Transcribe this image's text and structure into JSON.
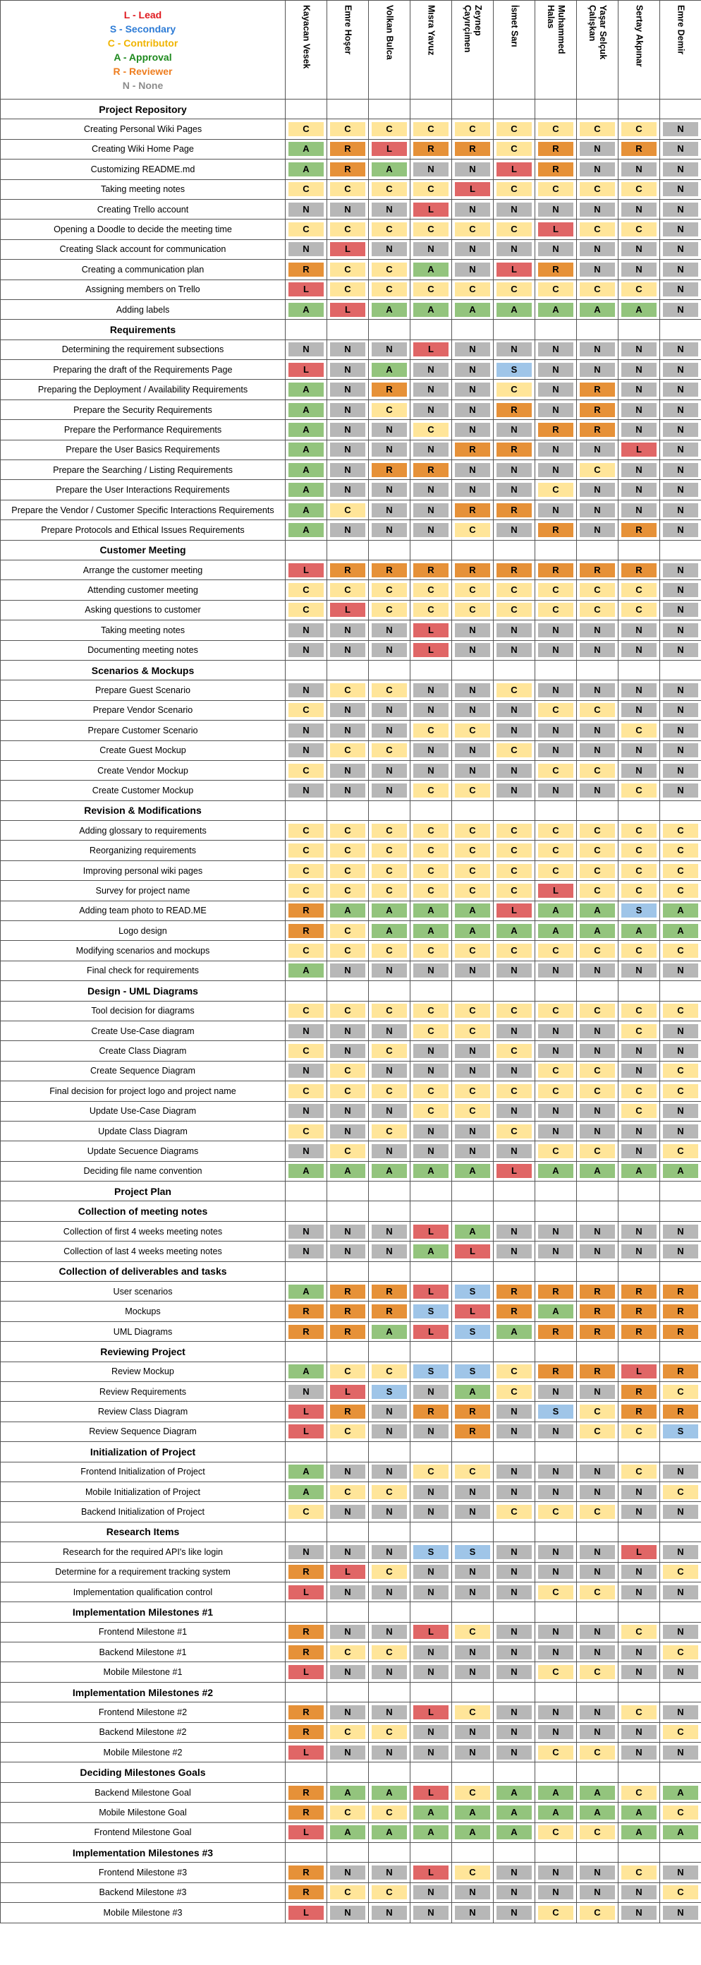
{
  "legend": [
    {
      "text": "L - Lead",
      "color": "#e0191f"
    },
    {
      "text": "S - Secondary",
      "color": "#2e7cd6"
    },
    {
      "text": "C - Contributor",
      "color": "#f0b400"
    },
    {
      "text": "A - Approval",
      "color": "#1e8a1e"
    },
    {
      "text": "R - Reviewer",
      "color": "#ee7d1f"
    },
    {
      "text": "N - None",
      "color": "#8c8c8c"
    }
  ],
  "colors": {
    "L": "#e06666",
    "S": "#9fc5e8",
    "C": "#ffe599",
    "A": "#93c47d",
    "R": "#e69138",
    "N": "#b7b7b7"
  },
  "members": [
    "Kayacan Vesek",
    "Emre Hoşer",
    "Volkan Bulca",
    "Mısra Yavuz",
    "Zeynep\nÇayırçimen",
    "İsmet Sarı",
    "Muhammed\nHalas",
    "Yaşar Selçuk\nÇalışkan",
    "Sertay Akpınar",
    "Emre Demir"
  ],
  "rows": [
    {
      "type": "section",
      "title": "Project Repository"
    },
    {
      "type": "task",
      "name": "Creating Personal Wiki Pages",
      "r": [
        "C",
        "C",
        "C",
        "C",
        "C",
        "C",
        "C",
        "C",
        "C",
        "N"
      ]
    },
    {
      "type": "task",
      "name": "Creating Wiki Home Page",
      "r": [
        "A",
        "R",
        "L",
        "R",
        "R",
        "C",
        "R",
        "N",
        "R",
        "N"
      ]
    },
    {
      "type": "task",
      "name": "Customizing README.md",
      "r": [
        "A",
        "R",
        "A",
        "N",
        "N",
        "L",
        "R",
        "N",
        "N",
        "N"
      ]
    },
    {
      "type": "task",
      "name": "Taking meeting notes",
      "r": [
        "C",
        "C",
        "C",
        "C",
        "L",
        "C",
        "C",
        "C",
        "C",
        "N"
      ]
    },
    {
      "type": "task",
      "name": "Creating Trello account",
      "r": [
        "N",
        "N",
        "N",
        "L",
        "N",
        "N",
        "N",
        "N",
        "N",
        "N"
      ]
    },
    {
      "type": "task",
      "name": "Opening a Doodle to decide the meeting time",
      "r": [
        "C",
        "C",
        "C",
        "C",
        "C",
        "C",
        "L",
        "C",
        "C",
        "N"
      ]
    },
    {
      "type": "task",
      "name": "Creating Slack account for communication",
      "r": [
        "N",
        "L",
        "N",
        "N",
        "N",
        "N",
        "N",
        "N",
        "N",
        "N"
      ]
    },
    {
      "type": "task",
      "name": "Creating a communication plan",
      "r": [
        "R",
        "C",
        "C",
        "A",
        "N",
        "L",
        "R",
        "N",
        "N",
        "N"
      ]
    },
    {
      "type": "task",
      "name": "Assigning members on Trello",
      "r": [
        "L",
        "C",
        "C",
        "C",
        "C",
        "C",
        "C",
        "C",
        "C",
        "N"
      ]
    },
    {
      "type": "task",
      "name": "Adding labels",
      "r": [
        "A",
        "L",
        "A",
        "A",
        "A",
        "A",
        "A",
        "A",
        "A",
        "N"
      ]
    },
    {
      "type": "section",
      "title": "Requirements"
    },
    {
      "type": "task",
      "name": "Determining the requirement subsections",
      "r": [
        "N",
        "N",
        "N",
        "L",
        "N",
        "N",
        "N",
        "N",
        "N",
        "N"
      ]
    },
    {
      "type": "task",
      "name": "Preparing the draft of the Requirements Page",
      "r": [
        "L",
        "N",
        "A",
        "N",
        "N",
        "S",
        "N",
        "N",
        "N",
        "N"
      ]
    },
    {
      "type": "task",
      "name": "Preparing the Deployment / Availability Requirements",
      "r": [
        "A",
        "N",
        "R",
        "N",
        "N",
        "C",
        "N",
        "R",
        "N",
        "N"
      ]
    },
    {
      "type": "task",
      "name": "Prepare the Security Requirements",
      "r": [
        "A",
        "N",
        "C",
        "N",
        "N",
        "R",
        "N",
        "R",
        "N",
        "N"
      ]
    },
    {
      "type": "task",
      "name": "Prepare the Performance Requirements",
      "r": [
        "A",
        "N",
        "N",
        "C",
        "N",
        "N",
        "R",
        "R",
        "N",
        "N"
      ]
    },
    {
      "type": "task",
      "name": "Prepare the User Basics Requirements",
      "r": [
        "A",
        "N",
        "N",
        "N",
        "R",
        "R",
        "N",
        "N",
        "L",
        "N"
      ]
    },
    {
      "type": "task",
      "name": "Prepare the Searching / Listing Requirements",
      "r": [
        "A",
        "N",
        "R",
        "R",
        "N",
        "N",
        "N",
        "C",
        "N",
        "N"
      ]
    },
    {
      "type": "task",
      "name": "Prepare the User Interactions Requirements",
      "r": [
        "A",
        "N",
        "N",
        "N",
        "N",
        "N",
        "C",
        "N",
        "N",
        "N"
      ]
    },
    {
      "type": "task",
      "name": "Prepare the Vendor / Customer Specific Interactions Requirements",
      "r": [
        "A",
        "C",
        "N",
        "N",
        "R",
        "R",
        "N",
        "N",
        "N",
        "N"
      ]
    },
    {
      "type": "task",
      "name": "Prepare Protocols and Ethical Issues Requirements",
      "r": [
        "A",
        "N",
        "N",
        "N",
        "C",
        "N",
        "R",
        "N",
        "R",
        "N"
      ]
    },
    {
      "type": "section",
      "title": "Customer Meeting"
    },
    {
      "type": "task",
      "name": "Arrange the customer meeting",
      "r": [
        "L",
        "R",
        "R",
        "R",
        "R",
        "R",
        "R",
        "R",
        "R",
        "N"
      ]
    },
    {
      "type": "task",
      "name": "Attending customer meeting",
      "r": [
        "C",
        "C",
        "C",
        "C",
        "C",
        "C",
        "C",
        "C",
        "C",
        "N"
      ]
    },
    {
      "type": "task",
      "name": "Asking questions to customer",
      "r": [
        "C",
        "L",
        "C",
        "C",
        "C",
        "C",
        "C",
        "C",
        "C",
        "N"
      ]
    },
    {
      "type": "task",
      "name": "Taking meeting notes",
      "r": [
        "N",
        "N",
        "N",
        "L",
        "N",
        "N",
        "N",
        "N",
        "N",
        "N"
      ]
    },
    {
      "type": "task",
      "name": "Documenting meeting notes",
      "r": [
        "N",
        "N",
        "N",
        "L",
        "N",
        "N",
        "N",
        "N",
        "N",
        "N"
      ]
    },
    {
      "type": "section",
      "title": "Scenarios & Mockups"
    },
    {
      "type": "task",
      "name": "Prepare Guest Scenario",
      "r": [
        "N",
        "C",
        "C",
        "N",
        "N",
        "C",
        "N",
        "N",
        "N",
        "N"
      ]
    },
    {
      "type": "task",
      "name": "Prepare Vendor Scenario",
      "r": [
        "C",
        "N",
        "N",
        "N",
        "N",
        "N",
        "C",
        "C",
        "N",
        "N"
      ]
    },
    {
      "type": "task",
      "name": "Prepare Customer Scenario",
      "r": [
        "N",
        "N",
        "N",
        "C",
        "C",
        "N",
        "N",
        "N",
        "C",
        "N"
      ]
    },
    {
      "type": "task",
      "name": "Create Guest Mockup",
      "r": [
        "N",
        "C",
        "C",
        "N",
        "N",
        "C",
        "N",
        "N",
        "N",
        "N"
      ]
    },
    {
      "type": "task",
      "name": "Create Vendor Mockup",
      "r": [
        "C",
        "N",
        "N",
        "N",
        "N",
        "N",
        "C",
        "C",
        "N",
        "N"
      ]
    },
    {
      "type": "task",
      "name": "Create Customer Mockup",
      "r": [
        "N",
        "N",
        "N",
        "C",
        "C",
        "N",
        "N",
        "N",
        "C",
        "N"
      ]
    },
    {
      "type": "section",
      "title": "Revision & Modifications"
    },
    {
      "type": "task",
      "name": "Adding glossary to requirements",
      "r": [
        "C",
        "C",
        "C",
        "C",
        "C",
        "C",
        "C",
        "C",
        "C",
        "C"
      ]
    },
    {
      "type": "task",
      "name": "Reorganizing requirements",
      "r": [
        "C",
        "C",
        "C",
        "C",
        "C",
        "C",
        "C",
        "C",
        "C",
        "C"
      ]
    },
    {
      "type": "task",
      "name": "Improving personal wiki pages",
      "r": [
        "C",
        "C",
        "C",
        "C",
        "C",
        "C",
        "C",
        "C",
        "C",
        "C"
      ]
    },
    {
      "type": "task",
      "name": "Survey for project name",
      "r": [
        "C",
        "C",
        "C",
        "C",
        "C",
        "C",
        "L",
        "C",
        "C",
        "C"
      ]
    },
    {
      "type": "task",
      "name": "Adding team photo to READ.ME",
      "r": [
        "R",
        "A",
        "A",
        "A",
        "A",
        "L",
        "A",
        "A",
        "S",
        "A"
      ]
    },
    {
      "type": "task",
      "name": "Logo design",
      "r": [
        "R",
        "C",
        "A",
        "A",
        "A",
        "A",
        "A",
        "A",
        "A",
        "A"
      ]
    },
    {
      "type": "task",
      "name": "Modifying scenarios and mockups",
      "r": [
        "C",
        "C",
        "C",
        "C",
        "C",
        "C",
        "C",
        "C",
        "C",
        "C"
      ]
    },
    {
      "type": "task",
      "name": "Final check for requirements",
      "r": [
        "A",
        "N",
        "N",
        "N",
        "N",
        "N",
        "N",
        "N",
        "N",
        "N"
      ]
    },
    {
      "type": "section",
      "title": "Design - UML Diagrams"
    },
    {
      "type": "task",
      "name": "Tool decision for diagrams",
      "r": [
        "C",
        "C",
        "C",
        "C",
        "C",
        "C",
        "C",
        "C",
        "C",
        "C"
      ]
    },
    {
      "type": "task",
      "name": "Create Use-Case diagram",
      "r": [
        "N",
        "N",
        "N",
        "C",
        "C",
        "N",
        "N",
        "N",
        "C",
        "N"
      ]
    },
    {
      "type": "task",
      "name": "Create Class Diagram",
      "r": [
        "C",
        "N",
        "C",
        "N",
        "N",
        "C",
        "N",
        "N",
        "N",
        "N"
      ]
    },
    {
      "type": "task",
      "name": "Create Sequence Diagram",
      "r": [
        "N",
        "C",
        "N",
        "N",
        "N",
        "N",
        "C",
        "C",
        "N",
        "C"
      ]
    },
    {
      "type": "task",
      "name": "Final decision for project logo and project name",
      "r": [
        "C",
        "C",
        "C",
        "C",
        "C",
        "C",
        "C",
        "C",
        "C",
        "C"
      ]
    },
    {
      "type": "task",
      "name": "Update Use-Case Diagram",
      "r": [
        "N",
        "N",
        "N",
        "C",
        "C",
        "N",
        "N",
        "N",
        "C",
        "N"
      ]
    },
    {
      "type": "task",
      "name": "Update Class Diagram",
      "r": [
        "C",
        "N",
        "C",
        "N",
        "N",
        "C",
        "N",
        "N",
        "N",
        "N"
      ]
    },
    {
      "type": "task",
      "name": "Update Secuence Diagrams",
      "r": [
        "N",
        "C",
        "N",
        "N",
        "N",
        "N",
        "C",
        "C",
        "N",
        "C"
      ]
    },
    {
      "type": "task",
      "name": "Deciding file name convention",
      "r": [
        "A",
        "A",
        "A",
        "A",
        "A",
        "L",
        "A",
        "A",
        "A",
        "A"
      ]
    },
    {
      "type": "section",
      "title": "Project Plan"
    },
    {
      "type": "section",
      "title": "Collection of meeting notes"
    },
    {
      "type": "task",
      "name": "Collection of first 4 weeks meeting notes",
      "r": [
        "N",
        "N",
        "N",
        "L",
        "A",
        "N",
        "N",
        "N",
        "N",
        "N"
      ]
    },
    {
      "type": "task",
      "name": "Collection of last 4 weeks meeting notes",
      "r": [
        "N",
        "N",
        "N",
        "A",
        "L",
        "N",
        "N",
        "N",
        "N",
        "N"
      ]
    },
    {
      "type": "section",
      "title": "Collection of deliverables and tasks"
    },
    {
      "type": "task",
      "name": "User scenarios",
      "r": [
        "A",
        "R",
        "R",
        "L",
        "S",
        "R",
        "R",
        "R",
        "R",
        "R"
      ]
    },
    {
      "type": "task",
      "name": "Mockups",
      "r": [
        "R",
        "R",
        "R",
        "S",
        "L",
        "R",
        "A",
        "R",
        "R",
        "R"
      ]
    },
    {
      "type": "task",
      "name": "UML Diagrams",
      "r": [
        "R",
        "R",
        "A",
        "L",
        "S",
        "A",
        "R",
        "R",
        "R",
        "R"
      ]
    },
    {
      "type": "section",
      "title": "Reviewing Project"
    },
    {
      "type": "task",
      "name": "Review Mockup",
      "r": [
        "A",
        "C",
        "C",
        "S",
        "S",
        "C",
        "R",
        "R",
        "L",
        "R"
      ]
    },
    {
      "type": "task",
      "name": "Review Requirements",
      "r": [
        "N",
        "L",
        "S",
        "N",
        "A",
        "C",
        "N",
        "N",
        "R",
        "C"
      ]
    },
    {
      "type": "task",
      "name": "Review Class Diagram",
      "r": [
        "L",
        "R",
        "N",
        "R",
        "R",
        "N",
        "S",
        "C",
        "R",
        "R"
      ]
    },
    {
      "type": "task",
      "name": "Review Sequence Diagram",
      "r": [
        "L",
        "C",
        "N",
        "N",
        "R",
        "N",
        "N",
        "C",
        "C",
        "S"
      ]
    },
    {
      "type": "section",
      "title": "Initialization of Project"
    },
    {
      "type": "task",
      "name": "Frontend Initialization of Project",
      "r": [
        "A",
        "N",
        "N",
        "C",
        "C",
        "N",
        "N",
        "N",
        "C",
        "N"
      ]
    },
    {
      "type": "task",
      "name": "Mobile Initialization of Project",
      "r": [
        "A",
        "C",
        "C",
        "N",
        "N",
        "N",
        "N",
        "N",
        "N",
        "C"
      ]
    },
    {
      "type": "task",
      "name": "Backend Initialization of Project",
      "r": [
        "C",
        "N",
        "N",
        "N",
        "N",
        "C",
        "C",
        "C",
        "N",
        "N"
      ]
    },
    {
      "type": "section",
      "title": "Research Items"
    },
    {
      "type": "task",
      "name": "Research for the required API's like login",
      "r": [
        "N",
        "N",
        "N",
        "S",
        "S",
        "N",
        "N",
        "N",
        "L",
        "N"
      ]
    },
    {
      "type": "task",
      "name": "Determine for a requirement tracking system",
      "r": [
        "R",
        "L",
        "C",
        "N",
        "N",
        "N",
        "N",
        "N",
        "N",
        "C"
      ]
    },
    {
      "type": "task",
      "name": "Implementation qualification control",
      "r": [
        "L",
        "N",
        "N",
        "N",
        "N",
        "N",
        "C",
        "C",
        "N",
        "N"
      ]
    },
    {
      "type": "section",
      "title": "Implementation Milestones #1"
    },
    {
      "type": "task",
      "name": "Frontend Milestone #1",
      "r": [
        "R",
        "N",
        "N",
        "L",
        "C",
        "N",
        "N",
        "N",
        "C",
        "N"
      ]
    },
    {
      "type": "task",
      "name": "Backend Milestone #1",
      "r": [
        "R",
        "C",
        "C",
        "N",
        "N",
        "N",
        "N",
        "N",
        "N",
        "C"
      ]
    },
    {
      "type": "task",
      "name": "Mobile Milestone #1",
      "r": [
        "L",
        "N",
        "N",
        "N",
        "N",
        "N",
        "C",
        "C",
        "N",
        "N"
      ]
    },
    {
      "type": "section",
      "title": "Implementation Milestones #2"
    },
    {
      "type": "task",
      "name": "Frontend Milestone #2",
      "r": [
        "R",
        "N",
        "N",
        "L",
        "C",
        "N",
        "N",
        "N",
        "C",
        "N"
      ]
    },
    {
      "type": "task",
      "name": "Backend Milestone #2",
      "r": [
        "R",
        "C",
        "C",
        "N",
        "N",
        "N",
        "N",
        "N",
        "N",
        "C"
      ]
    },
    {
      "type": "task",
      "name": "Mobile Milestone #2",
      "r": [
        "L",
        "N",
        "N",
        "N",
        "N",
        "N",
        "C",
        "C",
        "N",
        "N"
      ]
    },
    {
      "type": "section",
      "title": "Deciding Milestones Goals"
    },
    {
      "type": "task",
      "name": "Backend Milestone Goal",
      "r": [
        "R",
        "A",
        "A",
        "L",
        "C",
        "A",
        "A",
        "A",
        "C",
        "A"
      ]
    },
    {
      "type": "task",
      "name": "Mobile Milestone Goal",
      "r": [
        "R",
        "C",
        "C",
        "A",
        "A",
        "A",
        "A",
        "A",
        "A",
        "C"
      ]
    },
    {
      "type": "task",
      "name": "Frontend Milestone Goal",
      "r": [
        "L",
        "A",
        "A",
        "A",
        "A",
        "A",
        "C",
        "C",
        "A",
        "A"
      ]
    },
    {
      "type": "section",
      "title": "Implementation Milestones #3"
    },
    {
      "type": "task",
      "name": "Frontend Milestone #3",
      "r": [
        "R",
        "N",
        "N",
        "L",
        "C",
        "N",
        "N",
        "N",
        "C",
        "N"
      ]
    },
    {
      "type": "task",
      "name": "Backend Milestone #3",
      "r": [
        "R",
        "C",
        "C",
        "N",
        "N",
        "N",
        "N",
        "N",
        "N",
        "C"
      ]
    },
    {
      "type": "task",
      "name": "Mobile Milestone #3",
      "r": [
        "L",
        "N",
        "N",
        "N",
        "N",
        "N",
        "C",
        "C",
        "N",
        "N"
      ]
    }
  ]
}
